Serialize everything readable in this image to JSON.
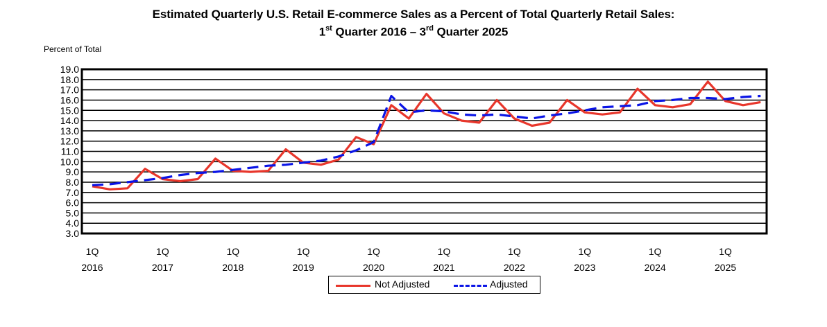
{
  "title_line1": "Estimated Quarterly U.S. Retail E-commerce Sales as a Percent of Total Quarterly Retail Sales:",
  "title_line2": {
    "a": "1",
    "a_sup": "st",
    "b": " Quarter 2016 – 3",
    "b_sup": "rd",
    "c": " Quarter 2025"
  },
  "chart_data": {
    "type": "line",
    "title": "Estimated Quarterly U.S. Retail E-commerce Sales as a Percent of Total Quarterly Retail Sales: 1st Quarter 2016 – 3rd Quarter 2025",
    "ylabel": "Percent of Total",
    "xlabel": "",
    "ylim": [
      3.0,
      19.0
    ],
    "ytick_step": 1.0,
    "grid": true,
    "legend_position": "bottom-center",
    "x": [
      "2016Q1",
      "2016Q2",
      "2016Q3",
      "2016Q4",
      "2017Q1",
      "2017Q2",
      "2017Q3",
      "2017Q4",
      "2018Q1",
      "2018Q2",
      "2018Q3",
      "2018Q4",
      "2019Q1",
      "2019Q2",
      "2019Q3",
      "2019Q4",
      "2020Q1",
      "2020Q2",
      "2020Q3",
      "2020Q4",
      "2021Q1",
      "2021Q2",
      "2021Q3",
      "2021Q4",
      "2022Q1",
      "2022Q2",
      "2022Q3",
      "2022Q4",
      "2023Q1",
      "2023Q2",
      "2023Q3",
      "2023Q4",
      "2024Q1",
      "2024Q2",
      "2024Q3",
      "2024Q4",
      "2025Q1",
      "2025Q2",
      "2025Q3"
    ],
    "x_tick_labels": [
      {
        "quarter": "1Q",
        "year": "2016"
      },
      {
        "quarter": "1Q",
        "year": "2017"
      },
      {
        "quarter": "1Q",
        "year": "2018"
      },
      {
        "quarter": "1Q",
        "year": "2019"
      },
      {
        "quarter": "1Q",
        "year": "2020"
      },
      {
        "quarter": "1Q",
        "year": "2021"
      },
      {
        "quarter": "1Q",
        "year": "2022"
      },
      {
        "quarter": "1Q",
        "year": "2023"
      },
      {
        "quarter": "1Q",
        "year": "2024"
      },
      {
        "quarter": "1Q",
        "year": "2025"
      }
    ],
    "series": [
      {
        "name": "Not Adjusted",
        "color": "#e8362b",
        "style": "solid",
        "values": [
          7.6,
          7.3,
          7.4,
          9.3,
          8.3,
          8.1,
          8.3,
          10.3,
          9.1,
          9.0,
          9.1,
          11.2,
          9.9,
          9.7,
          10.2,
          12.4,
          11.7,
          15.5,
          14.2,
          16.6,
          14.7,
          14.0,
          13.8,
          16.0,
          14.2,
          13.5,
          13.8,
          16.0,
          14.8,
          14.6,
          14.8,
          17.1,
          15.5,
          15.3,
          15.6,
          17.8,
          15.9,
          15.5,
          15.8
        ]
      },
      {
        "name": "Adjusted",
        "color": "#0a14e6",
        "style": "dashed",
        "values": [
          7.7,
          7.8,
          8.0,
          8.2,
          8.4,
          8.7,
          8.9,
          9.0,
          9.2,
          9.4,
          9.6,
          9.7,
          9.9,
          10.1,
          10.5,
          11.1,
          11.9,
          16.4,
          14.8,
          15.0,
          14.9,
          14.6,
          14.5,
          14.6,
          14.4,
          14.2,
          14.5,
          14.7,
          15.0,
          15.3,
          15.4,
          15.5,
          15.9,
          16.0,
          16.2,
          16.2,
          16.1,
          16.3,
          16.4
        ]
      }
    ]
  }
}
